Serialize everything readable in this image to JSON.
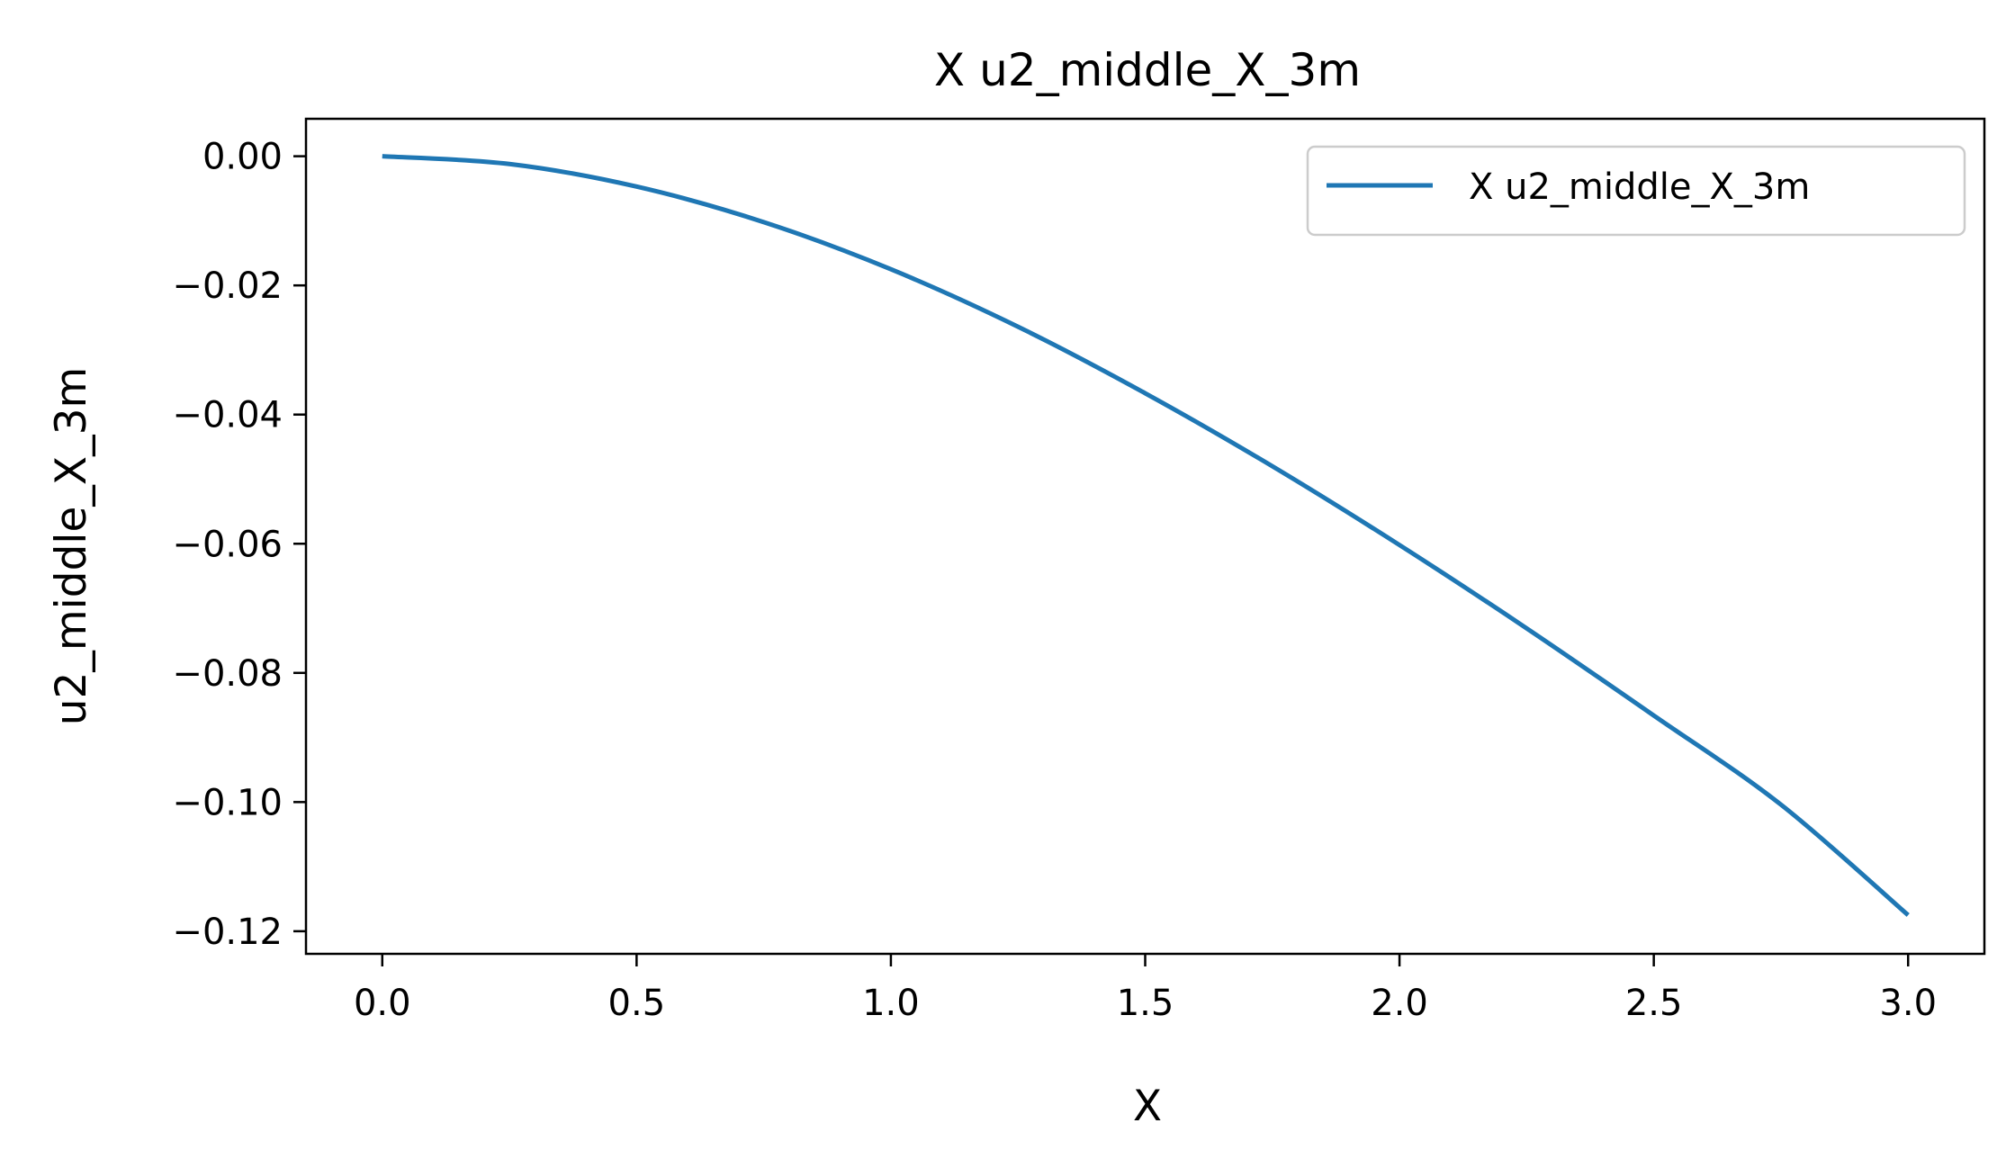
{
  "chart_data": {
    "type": "line",
    "title": "X u2_middle_X_3m",
    "xlabel": "X",
    "ylabel": "u2_middle_X_3m",
    "xlim": [
      -0.15,
      3.15
    ],
    "ylim": [
      -0.1235,
      0.0058
    ],
    "x_ticks": [
      0.0,
      0.5,
      1.0,
      1.5,
      2.0,
      2.5,
      3.0
    ],
    "x_tick_labels": [
      "0.0",
      "0.5",
      "1.0",
      "1.5",
      "2.0",
      "2.5",
      "3.0"
    ],
    "y_ticks": [
      0.0,
      -0.02,
      -0.04,
      -0.06,
      -0.08,
      -0.1,
      -0.12
    ],
    "y_tick_labels": [
      "0.00",
      "−0.02",
      "−0.04",
      "−0.06",
      "−0.08",
      "−0.10",
      "−0.12"
    ],
    "grid": false,
    "legend_position": "top-right",
    "series": [
      {
        "name": "X u2_middle_X_3m",
        "color": "#1f77b4",
        "x": [
          0.0,
          0.25,
          0.5,
          0.75,
          1.0,
          1.25,
          1.5,
          1.75,
          2.0,
          2.25,
          2.5,
          2.75,
          3.0
        ],
        "y": [
          0.0,
          -0.0012,
          -0.0047,
          -0.0102,
          -0.0175,
          -0.0264,
          -0.0367,
          -0.048,
          -0.0602,
          -0.0731,
          -0.0866,
          -0.1004,
          -0.1175
        ]
      }
    ]
  }
}
